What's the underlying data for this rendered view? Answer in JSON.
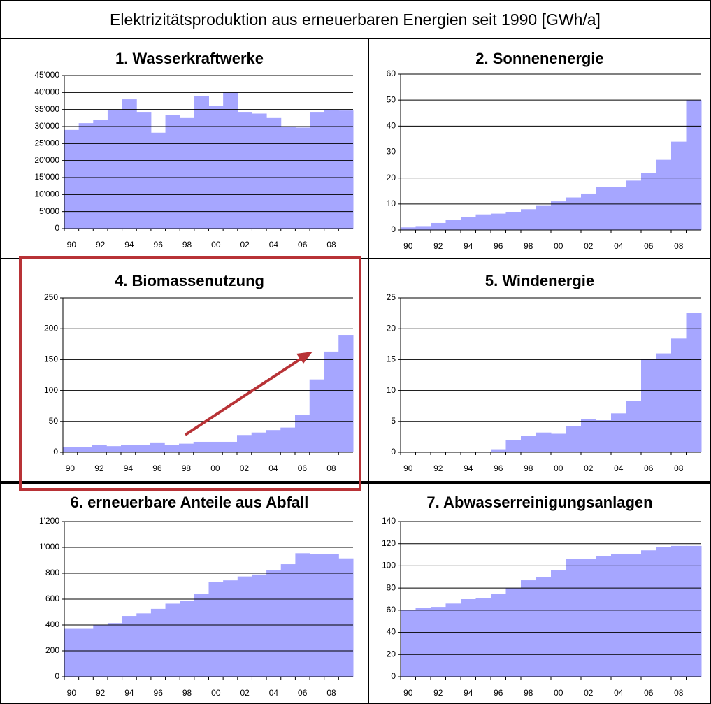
{
  "title": "Elektrizitätsproduktion aus erneuerbaren Energien seit 1990  [GWh/a]",
  "chart_data": [
    {
      "type": "bar",
      "title": "1. Wasserkraftwerke",
      "color": "#a6a6ff",
      "grid": true,
      "categories": [
        "90",
        null,
        "92",
        null,
        "94",
        null,
        "96",
        null,
        "98",
        null,
        "00",
        null,
        "02",
        null,
        "04",
        null,
        "06",
        null,
        "08",
        null
      ],
      "values": [
        29000,
        31000,
        32000,
        35000,
        38000,
        34300,
        28200,
        33300,
        32500,
        39000,
        36000,
        40000,
        34300,
        33800,
        32500,
        30000,
        29700,
        34300,
        35000,
        34700
      ],
      "ylim": [
        0,
        45000
      ],
      "yticks": [
        0,
        {
          "value": 5000,
          "label": "5'000"
        },
        {
          "value": 10000,
          "label": "10'000"
        },
        {
          "value": 15000,
          "label": "15'000"
        },
        {
          "value": 20000,
          "label": "20'000"
        },
        {
          "value": 25000,
          "label": "25'000"
        },
        {
          "value": 30000,
          "label": "30'000"
        },
        {
          "value": 35000,
          "label": "35'000"
        },
        {
          "value": 40000,
          "label": "40'000"
        },
        {
          "value": 45000,
          "label": "45'000"
        }
      ]
    },
    {
      "type": "bar",
      "title": "2. Sonnenenergie",
      "color": "#a6a6ff",
      "grid": true,
      "categories": [
        "90",
        null,
        "92",
        null,
        "94",
        null,
        "96",
        null,
        "98",
        null,
        "00",
        null,
        "02",
        null,
        "04",
        null,
        "06",
        null,
        "08",
        null
      ],
      "values": [
        1,
        1.5,
        2.7,
        4,
        5,
        6,
        6.3,
        7,
        8,
        9.5,
        11,
        12.5,
        14,
        16.5,
        16.5,
        19,
        22,
        27,
        34,
        50
      ],
      "ylim": [
        0,
        60
      ],
      "yticks": [
        0,
        10,
        20,
        30,
        40,
        50,
        60
      ]
    },
    {
      "type": "bar",
      "title": "4. Biomassenutzung",
      "color": "#a6a6ff",
      "grid": true,
      "categories": [
        "90",
        null,
        "92",
        null,
        "94",
        null,
        "96",
        null,
        "98",
        null,
        "00",
        null,
        "02",
        null,
        "04",
        null,
        "06",
        null,
        "08",
        null
      ],
      "values": [
        8,
        8,
        12,
        10,
        12,
        12,
        16,
        12,
        14,
        17,
        17,
        17,
        28,
        32,
        36,
        40,
        60,
        118,
        163,
        190
      ],
      "ylim": [
        0,
        250
      ],
      "yticks": [
        0,
        50,
        100,
        150,
        200,
        250
      ]
    },
    {
      "type": "bar",
      "title": "5. Windenergie",
      "color": "#a6a6ff",
      "grid": true,
      "categories": [
        "90",
        null,
        "92",
        null,
        "94",
        null,
        "96",
        null,
        "98",
        null,
        "00",
        null,
        "02",
        null,
        "04",
        null,
        "06",
        null,
        "08",
        null
      ],
      "values": [
        0,
        0,
        0,
        0,
        0,
        0,
        0.5,
        2,
        2.7,
        3.2,
        3,
        4.2,
        5.4,
        5.2,
        6.3,
        8.3,
        15,
        16,
        18.4,
        22.6
      ],
      "ylim": [
        0,
        25
      ],
      "yticks": [
        0,
        5,
        10,
        15,
        20,
        25
      ]
    },
    {
      "type": "bar",
      "title": "6. erneuerbare Anteile aus Abfall",
      "color": "#a6a6ff",
      "grid": true,
      "categories": [
        "90",
        null,
        "92",
        null,
        "94",
        null,
        "96",
        null,
        "98",
        null,
        "00",
        null,
        "02",
        null,
        "04",
        null,
        "06",
        null,
        "08",
        null
      ],
      "values": [
        370,
        370,
        400,
        415,
        470,
        490,
        525,
        565,
        585,
        640,
        730,
        745,
        775,
        790,
        825,
        870,
        955,
        950,
        950,
        915
      ],
      "ylim": [
        0,
        1200
      ],
      "yticks": [
        0,
        200,
        400,
        600,
        800,
        {
          "value": 1000,
          "label": "1'000"
        },
        {
          "value": 1200,
          "label": "1'200"
        }
      ]
    },
    {
      "type": "bar",
      "title": "7. Abwasserreinigungsanlagen",
      "color": "#a6a6ff",
      "grid": true,
      "categories": [
        "90",
        null,
        "92",
        null,
        "94",
        null,
        "96",
        null,
        "98",
        null,
        "00",
        null,
        "02",
        null,
        "04",
        null,
        "06",
        null,
        "08",
        null
      ],
      "values": [
        60,
        62,
        63,
        66,
        70,
        71,
        75,
        80,
        87,
        90,
        96,
        106,
        106,
        109,
        111,
        111,
        114,
        117,
        118,
        118
      ],
      "ylim": [
        0,
        140
      ],
      "yticks": [
        0,
        20,
        40,
        60,
        80,
        100,
        120,
        140
      ]
    }
  ]
}
